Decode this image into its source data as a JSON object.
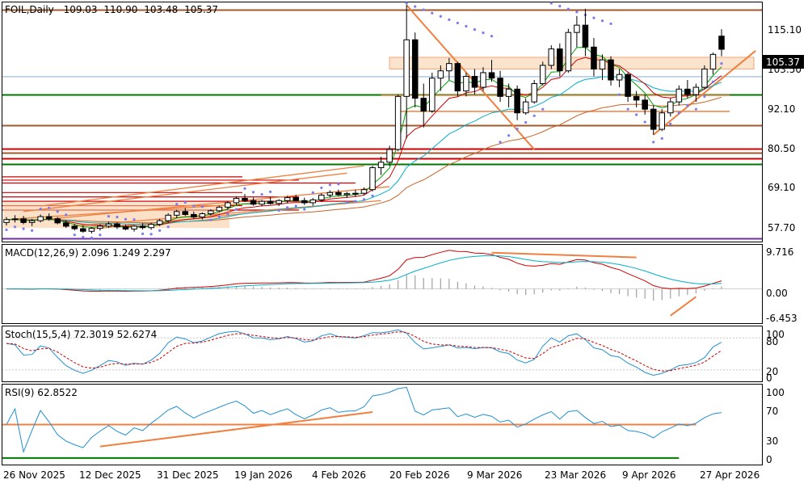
{
  "main": {
    "header": {
      "symbol": "FOIL,Daily",
      "open": "109.03",
      "high": "110.90",
      "low": "103.48",
      "close": "105.37"
    },
    "price_axis": [
      "115.10",
      "103.50",
      "92.10",
      "80.50",
      "69.10",
      "57.70"
    ],
    "last_price": "105.37"
  },
  "macd": {
    "label": "MACD(12,26,9) 2.096 1.249 2.297",
    "axis": [
      "9.716",
      "0.00",
      "-6.453"
    ]
  },
  "stoch": {
    "label": "Stoch(15,5,4) 72.3019 52.6274",
    "axis": [
      "100",
      "80",
      "20",
      "0"
    ]
  },
  "rsi": {
    "label": "RSI(9) 62.8522",
    "axis": [
      "100",
      "70",
      "30",
      "0"
    ]
  },
  "date_axis": [
    "26 Nov 2025",
    "12 Dec 2025",
    "31 Dec 2025",
    "19 Jan 2026",
    "4 Feb 2026",
    "20 Feb 2026",
    "9 Mar 2026",
    "23 Mar 2026",
    "9 Apr 2026",
    "27 Apr 2026"
  ],
  "colors": {
    "bull": "#ffffff",
    "bear": "#000000",
    "psar": "#7b7bf0",
    "fast_ma": "#00a000",
    "mid_ma": "#00b0c8",
    "slow_ma": "#c86428",
    "red_ma": "#d00000",
    "trendline": "#f08040",
    "support_green": "#007800",
    "support_red": "#d00000",
    "support_brown": "#a05a2c"
  },
  "chart_data": {
    "type": "candlestick",
    "series": [
      {
        "name": "price",
        "values": [
          {
            "o": 58.0,
            "h": 59.5,
            "l": 57.2,
            "c": 58.8
          },
          {
            "o": 58.8,
            "h": 60.0,
            "l": 58.0,
            "c": 59.0
          },
          {
            "o": 59.0,
            "h": 59.8,
            "l": 57.5,
            "c": 58.0
          },
          {
            "o": 58.0,
            "h": 59.0,
            "l": 57.0,
            "c": 58.5
          },
          {
            "o": 58.5,
            "h": 60.2,
            "l": 58.0,
            "c": 59.6
          },
          {
            "o": 59.6,
            "h": 60.5,
            "l": 58.5,
            "c": 59.0
          },
          {
            "o": 59.0,
            "h": 59.5,
            "l": 57.5,
            "c": 57.9
          },
          {
            "o": 57.9,
            "h": 58.6,
            "l": 56.5,
            "c": 57.0
          },
          {
            "o": 57.0,
            "h": 57.6,
            "l": 55.8,
            "c": 56.3
          },
          {
            "o": 56.3,
            "h": 57.2,
            "l": 55.2,
            "c": 55.6
          },
          {
            "o": 55.6,
            "h": 56.8,
            "l": 55.0,
            "c": 56.4
          },
          {
            "o": 56.4,
            "h": 57.5,
            "l": 55.8,
            "c": 57.0
          },
          {
            "o": 57.0,
            "h": 58.2,
            "l": 56.5,
            "c": 57.6
          },
          {
            "o": 57.6,
            "h": 58.0,
            "l": 56.2,
            "c": 56.8
          },
          {
            "o": 56.8,
            "h": 57.4,
            "l": 55.9,
            "c": 56.2
          },
          {
            "o": 56.2,
            "h": 57.3,
            "l": 55.5,
            "c": 57.0
          },
          {
            "o": 57.0,
            "h": 57.8,
            "l": 56.1,
            "c": 56.6
          },
          {
            "o": 56.6,
            "h": 57.9,
            "l": 56.0,
            "c": 57.5
          },
          {
            "o": 57.5,
            "h": 59.0,
            "l": 57.0,
            "c": 58.5
          },
          {
            "o": 58.5,
            "h": 60.5,
            "l": 58.0,
            "c": 60.0
          },
          {
            "o": 60.0,
            "h": 61.5,
            "l": 59.2,
            "c": 61.0
          },
          {
            "o": 61.0,
            "h": 62.0,
            "l": 59.8,
            "c": 60.2
          },
          {
            "o": 60.2,
            "h": 61.0,
            "l": 59.0,
            "c": 59.5
          },
          {
            "o": 59.5,
            "h": 60.8,
            "l": 58.8,
            "c": 60.4
          },
          {
            "o": 60.4,
            "h": 61.6,
            "l": 59.9,
            "c": 61.2
          },
          {
            "o": 61.2,
            "h": 62.6,
            "l": 60.8,
            "c": 62.2
          },
          {
            "o": 62.2,
            "h": 63.9,
            "l": 61.5,
            "c": 63.4
          },
          {
            "o": 63.4,
            "h": 65.2,
            "l": 62.8,
            "c": 64.6
          },
          {
            "o": 64.6,
            "h": 65.8,
            "l": 63.6,
            "c": 64.0
          },
          {
            "o": 64.0,
            "h": 64.8,
            "l": 62.6,
            "c": 63.0
          },
          {
            "o": 63.0,
            "h": 64.2,
            "l": 62.4,
            "c": 63.8
          },
          {
            "o": 63.8,
            "h": 64.9,
            "l": 62.9,
            "c": 63.2
          },
          {
            "o": 63.2,
            "h": 64.4,
            "l": 62.5,
            "c": 64.0
          },
          {
            "o": 64.0,
            "h": 65.3,
            "l": 63.3,
            "c": 64.8
          },
          {
            "o": 64.8,
            "h": 65.6,
            "l": 63.7,
            "c": 64.0
          },
          {
            "o": 64.0,
            "h": 64.8,
            "l": 62.8,
            "c": 63.4
          },
          {
            "o": 63.4,
            "h": 64.7,
            "l": 62.6,
            "c": 64.2
          },
          {
            "o": 64.2,
            "h": 66.0,
            "l": 63.6,
            "c": 65.5
          },
          {
            "o": 65.5,
            "h": 66.8,
            "l": 64.8,
            "c": 66.2
          },
          {
            "o": 66.2,
            "h": 67.0,
            "l": 65.2,
            "c": 65.6
          },
          {
            "o": 65.6,
            "h": 66.4,
            "l": 64.7,
            "c": 65.9
          },
          {
            "o": 65.9,
            "h": 67.0,
            "l": 65.0,
            "c": 66.0
          },
          {
            "o": 66.0,
            "h": 67.6,
            "l": 65.5,
            "c": 67.0
          },
          {
            "o": 67.0,
            "h": 73.5,
            "l": 66.5,
            "c": 73.0
          },
          {
            "o": 73.0,
            "h": 76.0,
            "l": 71.0,
            "c": 74.5
          },
          {
            "o": 74.5,
            "h": 79.0,
            "l": 73.5,
            "c": 78.0
          },
          {
            "o": 78.0,
            "h": 93.0,
            "l": 77.5,
            "c": 92.5
          },
          {
            "o": 92.5,
            "h": 117.5,
            "l": 81.0,
            "c": 108.0
          },
          {
            "o": 108.0,
            "h": 110.0,
            "l": 89.5,
            "c": 92.0
          },
          {
            "o": 92.0,
            "h": 96.0,
            "l": 84.0,
            "c": 88.5
          },
          {
            "o": 88.5,
            "h": 99.0,
            "l": 88.0,
            "c": 97.5
          },
          {
            "o": 97.5,
            "h": 101.0,
            "l": 94.0,
            "c": 99.5
          },
          {
            "o": 99.5,
            "h": 103.0,
            "l": 97.0,
            "c": 101.5
          },
          {
            "o": 101.5,
            "h": 102.0,
            "l": 92.5,
            "c": 94.0
          },
          {
            "o": 94.0,
            "h": 99.0,
            "l": 92.5,
            "c": 98.0
          },
          {
            "o": 98.0,
            "h": 100.0,
            "l": 93.0,
            "c": 95.0
          },
          {
            "o": 95.0,
            "h": 100.5,
            "l": 94.0,
            "c": 99.0
          },
          {
            "o": 99.0,
            "h": 102.5,
            "l": 96.5,
            "c": 97.5
          },
          {
            "o": 97.5,
            "h": 99.5,
            "l": 91.0,
            "c": 92.5
          },
          {
            "o": 92.5,
            "h": 96.0,
            "l": 89.5,
            "c": 94.5
          },
          {
            "o": 94.5,
            "h": 95.5,
            "l": 86.0,
            "c": 88.0
          },
          {
            "o": 88.0,
            "h": 92.0,
            "l": 87.5,
            "c": 91.0
          },
          {
            "o": 91.0,
            "h": 97.0,
            "l": 90.5,
            "c": 96.0
          },
          {
            "o": 96.0,
            "h": 102.0,
            "l": 95.5,
            "c": 101.0
          },
          {
            "o": 101.0,
            "h": 106.5,
            "l": 100.0,
            "c": 105.5
          },
          {
            "o": 105.5,
            "h": 107.0,
            "l": 98.0,
            "c": 99.5
          },
          {
            "o": 99.5,
            "h": 111.0,
            "l": 99.0,
            "c": 110.0
          },
          {
            "o": 110.0,
            "h": 114.5,
            "l": 106.0,
            "c": 112.0
          },
          {
            "o": 112.0,
            "h": 116.5,
            "l": 103.5,
            "c": 106.0
          },
          {
            "o": 106.0,
            "h": 108.5,
            "l": 98.0,
            "c": 100.0
          },
          {
            "o": 100.0,
            "h": 104.0,
            "l": 97.0,
            "c": 102.5
          },
          {
            "o": 102.5,
            "h": 103.5,
            "l": 95.5,
            "c": 97.0
          },
          {
            "o": 97.0,
            "h": 100.0,
            "l": 95.0,
            "c": 98.5
          },
          {
            "o": 98.5,
            "h": 99.0,
            "l": 91.0,
            "c": 92.5
          },
          {
            "o": 92.5,
            "h": 94.0,
            "l": 89.5,
            "c": 91.5
          },
          {
            "o": 91.5,
            "h": 93.0,
            "l": 87.5,
            "c": 89.0
          },
          {
            "o": 89.0,
            "h": 90.0,
            "l": 82.0,
            "c": 83.5
          },
          {
            "o": 83.5,
            "h": 89.0,
            "l": 83.0,
            "c": 88.0
          },
          {
            "o": 88.0,
            "h": 92.0,
            "l": 87.0,
            "c": 91.0
          },
          {
            "o": 91.0,
            "h": 95.5,
            "l": 90.0,
            "c": 94.5
          },
          {
            "o": 94.5,
            "h": 97.0,
            "l": 92.0,
            "c": 93.0
          },
          {
            "o": 93.0,
            "h": 96.0,
            "l": 91.0,
            "c": 95.0
          },
          {
            "o": 95.0,
            "h": 101.0,
            "l": 94.5,
            "c": 100.0
          },
          {
            "o": 100.0,
            "h": 104.5,
            "l": 98.5,
            "c": 104.0
          },
          {
            "o": 109.0,
            "h": 110.9,
            "l": 103.5,
            "c": 105.4
          }
        ]
      }
    ],
    "ylim": [
      53,
      118
    ],
    "x_ticks": [
      "26 Nov 2025",
      "12 Dec 2025",
      "31 Dec 2025",
      "19 Jan 2026",
      "4 Feb 2026",
      "20 Feb 2026",
      "9 Mar 2026",
      "23 Mar 2026",
      "9 Apr 2026",
      "27 Apr 2026"
    ],
    "y_ticks": [
      115.1,
      103.5,
      92.1,
      80.5,
      69.1,
      57.7
    ],
    "horizontal_levels": [
      {
        "value": 116.3,
        "color": "#a05a2c"
      },
      {
        "value": 93.0,
        "color": "#007800"
      },
      {
        "value": 84.7,
        "color": "#a05a2c"
      },
      {
        "value": 78.1,
        "color": "#d00000"
      },
      {
        "value": 77.2,
        "color": "#a05a2c"
      },
      {
        "value": 75.6,
        "color": "#d00000"
      },
      {
        "value": 74.0,
        "color": "#007800"
      },
      {
        "value": 53.7,
        "color": "#7030a0"
      }
    ],
    "macd": {
      "ylim": [
        -8.5,
        11
      ],
      "ticks": [
        9.716,
        0.0,
        -6.453
      ]
    },
    "stoch": {
      "ylim": [
        0,
        100
      ],
      "ticks": [
        100,
        80,
        20,
        0
      ]
    },
    "rsi": {
      "ylim": [
        0,
        100
      ],
      "ticks": [
        100,
        70,
        30,
        0
      ]
    }
  }
}
